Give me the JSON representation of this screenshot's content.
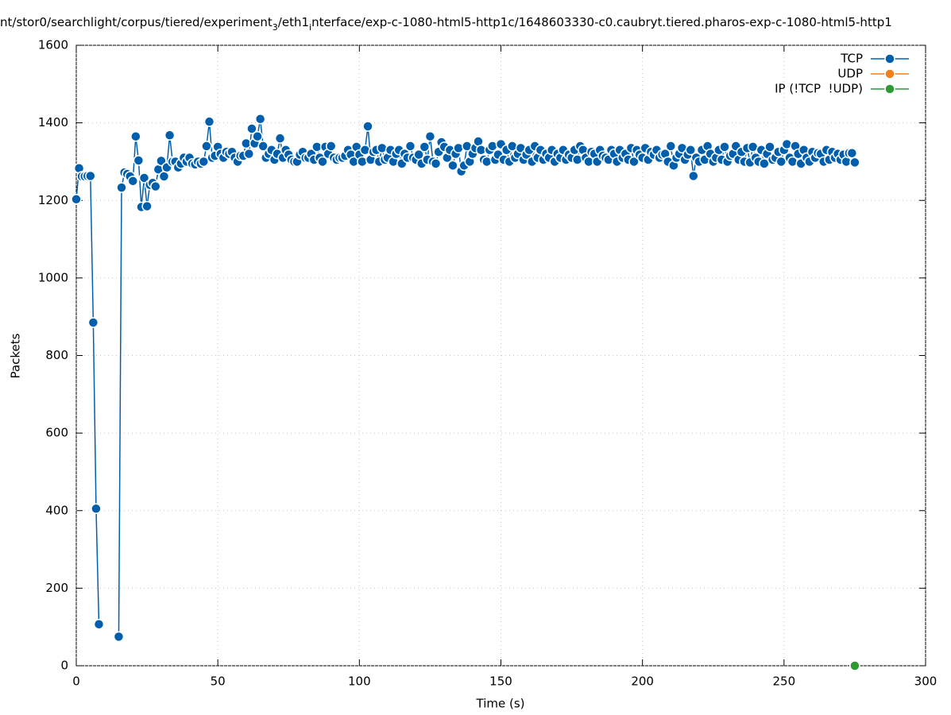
{
  "chart_data": {
    "type": "line",
    "title_parts": [
      "nt/stor0/searchlight/corpus/tiered/experiment",
      "3",
      "/eth1",
      "i",
      "nterface/exp-c-1080-html5-http1c/1648603330-c0.caubryt.tiered.pharos-exp-c-1080-html5-http1"
    ],
    "xlabel": "Time (s)",
    "ylabel": "Packets",
    "xlim": [
      0,
      300
    ],
    "xticks": [
      0,
      50,
      100,
      150,
      200,
      250,
      300
    ],
    "ylim": [
      0,
      1600
    ],
    "yticks": [
      0,
      200,
      400,
      600,
      800,
      1000,
      1200,
      1400,
      1600
    ],
    "grid": true,
    "legend": "top-right",
    "series": [
      {
        "name": "TCP",
        "color": "#005fad",
        "x": [
          0,
          1,
          2,
          3,
          4,
          5,
          6,
          7,
          8,
          9,
          10,
          11,
          12,
          13,
          14,
          15,
          16,
          17,
          18,
          19,
          20,
          21,
          22,
          23,
          24,
          25,
          26,
          27,
          28,
          29,
          30,
          31,
          32,
          33,
          34,
          35,
          36,
          37,
          38,
          39,
          40,
          41,
          42,
          43,
          44,
          45,
          46,
          47,
          48,
          49,
          50,
          51,
          52,
          53,
          54,
          55,
          56,
          57,
          58,
          59,
          60,
          61,
          62,
          63,
          64,
          65,
          66,
          67,
          68,
          69,
          70,
          71,
          72,
          73,
          74,
          75,
          76,
          77,
          78,
          79,
          80,
          81,
          82,
          83,
          84,
          85,
          86,
          87,
          88,
          89,
          90,
          91,
          92,
          93,
          94,
          95,
          96,
          97,
          98,
          99,
          100,
          101,
          102,
          103,
          104,
          105,
          106,
          107,
          108,
          109,
          110,
          111,
          112,
          113,
          114,
          115,
          116,
          117,
          118,
          119,
          120,
          121,
          122,
          123,
          124,
          125,
          126,
          127,
          128,
          129,
          130,
          131,
          132,
          133,
          134,
          135,
          136,
          137,
          138,
          139,
          140,
          141,
          142,
          143,
          144,
          145,
          146,
          147,
          148,
          149,
          150,
          151,
          152,
          153,
          154,
          155,
          156,
          157,
          158,
          159,
          160,
          161,
          162,
          163,
          164,
          165,
          166,
          167,
          168,
          169,
          170,
          171,
          172,
          173,
          174,
          175,
          176,
          177,
          178,
          179,
          180,
          181,
          182,
          183,
          184,
          185,
          186,
          187,
          188,
          189,
          190,
          191,
          192,
          193,
          194,
          195,
          196,
          197,
          198,
          199,
          200,
          201,
          202,
          203,
          204,
          205,
          206,
          207,
          208,
          209,
          210,
          211,
          212,
          213,
          214,
          215,
          216,
          217,
          218,
          219,
          220,
          221,
          222,
          223,
          224,
          225,
          226,
          227,
          228,
          229,
          230,
          231,
          232,
          233,
          234,
          235,
          236,
          237,
          238,
          239,
          240,
          241,
          242,
          243,
          244,
          245,
          246,
          247,
          248,
          249,
          250,
          251,
          252,
          253,
          254,
          255,
          256,
          257,
          258,
          259,
          260,
          261,
          262,
          263,
          264,
          265,
          266,
          267,
          268,
          269,
          270,
          271,
          272,
          273,
          274,
          275
        ],
        "values": [
          1203,
          1283,
          1262,
          1262,
          1263,
          1263,
          885,
          405,
          107,
          null,
          null,
          null,
          null,
          null,
          null,
          75,
          1233,
          1272,
          1268,
          1262,
          1250,
          1365,
          1303,
          1183,
          1258,
          1185,
          1240,
          1245,
          1236,
          1280,
          1302,
          1262,
          1285,
          1368,
          1300,
          1300,
          1285,
          1295,
          1310,
          1300,
          1310,
          1295,
          1293,
          1300,
          1295,
          1300,
          1340,
          1403,
          1310,
          1315,
          1338,
          1320,
          1310,
          1325,
          1320,
          1325,
          1310,
          1300,
          1315,
          1315,
          1347,
          1320,
          1385,
          1347,
          1365,
          1410,
          1340,
          1310,
          1320,
          1330,
          1305,
          1320,
          1360,
          1310,
          1330,
          1318,
          1305,
          1300,
          1300,
          1318,
          1325,
          1310,
          1310,
          1320,
          1305,
          1338,
          1310,
          1300,
          1338,
          1320,
          1340,
          1310,
          1305,
          1310,
          1310,
          1315,
          1330,
          1318,
          1300,
          1338,
          1318,
          1300,
          1330,
          1391,
          1305,
          1325,
          1330,
          1300,
          1335,
          1305,
          1310,
          1330,
          1300,
          1320,
          1330,
          1295,
          1320,
          1310,
          1340,
          1310,
          1305,
          1318,
          1295,
          1338,
          1305,
          1365,
          1300,
          1295,
          1325,
          1350,
          1338,
          1310,
          1330,
          1290,
          1320,
          1335,
          1275,
          1290,
          1340,
          1300,
          1320,
          1335,
          1352,
          1330,
          1305,
          1300,
          1330,
          1340,
          1305,
          1318,
          1345,
          1305,
          1330,
          1300,
          1340,
          1310,
          1320,
          1335,
          1305,
          1318,
          1330,
          1300,
          1340,
          1310,
          1330,
          1305,
          1320,
          1310,
          1330,
          1300,
          1320,
          1310,
          1330,
          1305,
          1318,
          1310,
          1330,
          1305,
          1340,
          1330,
          1310,
          1300,
          1325,
          1320,
          1300,
          1330,
          1315,
          1310,
          1305,
          1330,
          1320,
          1300,
          1330,
          1310,
          1320,
          1305,
          1335,
          1300,
          1330,
          1318,
          1310,
          1335,
          1305,
          1325,
          1318,
          1330,
          1310,
          1318,
          1320,
          1300,
          1340,
          1290,
          1310,
          1320,
          1335,
          1305,
          1318,
          1330,
          1263,
          1310,
          1300,
          1330,
          1305,
          1340,
          1320,
          1300,
          1310,
          1330,
          1305,
          1338,
          1300,
          1315,
          1320,
          1340,
          1305,
          1325,
          1300,
          1335,
          1298,
          1338,
          1310,
          1300,
          1330,
          1295,
          1320,
          1338,
          1305,
          1310,
          1325,
          1300,
          1330,
          1345,
          1310,
          1300,
          1340,
          1320,
          1295,
          1330,
          1310,
          1300,
          1325,
          1310,
          1322,
          1320,
          1300,
          1330,
          1305,
          1325,
          1310,
          1320,
          1305,
          1318,
          1300,
          1322,
          1322,
          1298
        ]
      },
      {
        "name": "UDP",
        "color": "#f07f1a",
        "x": [
          275
        ],
        "values": [
          0
        ]
      },
      {
        "name": "IP (!TCP  !UDP)",
        "color": "#2d9a32",
        "x": [
          275
        ],
        "values": [
          0
        ]
      }
    ]
  }
}
